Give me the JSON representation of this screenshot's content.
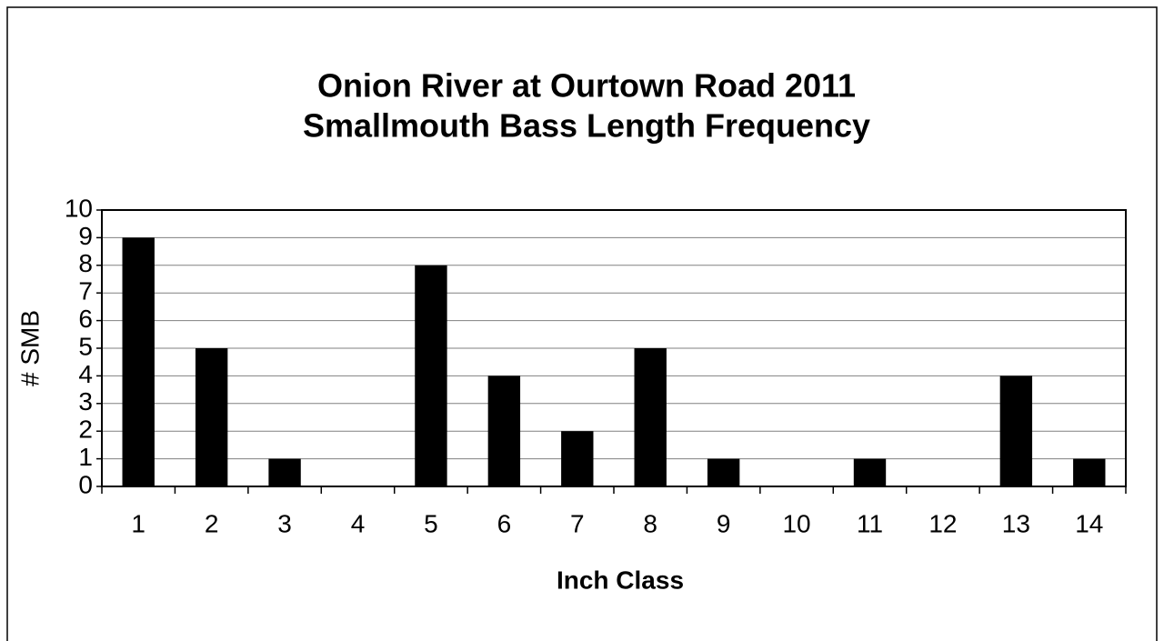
{
  "chart_data": {
    "type": "bar",
    "title": [
      "Onion River at Ourtown Road 2011",
      "Smallmouth Bass Length Frequency"
    ],
    "x_label": "Inch Class",
    "y_label": "# SMB",
    "categories": [
      "1",
      "2",
      "3",
      "4",
      "5",
      "6",
      "7",
      "8",
      "9",
      "10",
      "11",
      "12",
      "13",
      "14"
    ],
    "values": [
      9,
      5,
      1,
      0,
      8,
      4,
      2,
      5,
      1,
      0,
      1,
      0,
      4,
      1
    ],
    "color": "#000000",
    "ylim": [
      0,
      10
    ],
    "yticks": [
      0,
      1,
      2,
      3,
      4,
      5,
      6,
      7,
      8,
      9,
      10
    ],
    "grid": true
  }
}
